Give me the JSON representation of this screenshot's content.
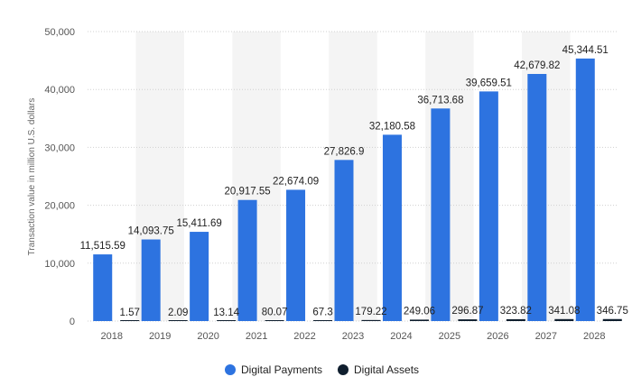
{
  "colors": {
    "digital_payments": "#2d73e0",
    "digital_assets": "#0f1e2e",
    "band": "#f4f4f4",
    "grid": "#d0d0d0"
  },
  "chart_data": {
    "type": "bar",
    "title": "",
    "xlabel": "",
    "ylabel": "Transaction value in million U.S. dollars",
    "categories": [
      "2018",
      "2019",
      "2020",
      "2021",
      "2022",
      "2023",
      "2024",
      "2025",
      "2026",
      "2027",
      "2028"
    ],
    "series": [
      {
        "name": "Digital Payments",
        "values": [
          11515.59,
          14093.75,
          15411.69,
          20917.55,
          22674.09,
          27826.9,
          32180.58,
          36713.68,
          39659.51,
          42679.82,
          45344.51
        ],
        "labels": [
          "11,515.59",
          "14,093.75",
          "15,411.69",
          "20,917.55",
          "22,674.09",
          "27,826.9",
          "32,180.58",
          "36,713.68",
          "39,659.51",
          "42,679.82",
          "45,344.51"
        ]
      },
      {
        "name": "Digital Assets",
        "values": [
          1.57,
          2.09,
          13.14,
          80.07,
          67.3,
          179.22,
          249.06,
          296.87,
          323.82,
          341.08,
          346.75
        ],
        "labels": [
          "1.57",
          "2.09",
          "13.14",
          "80.07",
          "67.3",
          "179.22",
          "249.06",
          "296.87",
          "323.82",
          "341.08",
          "346.75"
        ]
      }
    ],
    "ylim": [
      0,
      50000
    ],
    "yticks": [
      0,
      10000,
      20000,
      30000,
      40000,
      50000
    ],
    "ytick_labels": [
      "0",
      "10,000",
      "20,000",
      "30,000",
      "40,000",
      "50,000"
    ],
    "grid": true,
    "legend_position": "bottom-center"
  }
}
